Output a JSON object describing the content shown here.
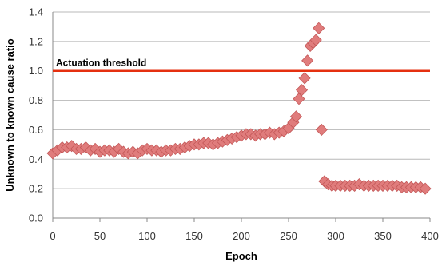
{
  "chart_data": {
    "type": "scatter",
    "title": "",
    "xlabel": "Epoch",
    "ylabel": "Unknown to known cause ratio",
    "xlim": [
      0,
      400
    ],
    "ylim": [
      0,
      1.4
    ],
    "xticks": [
      0,
      50,
      100,
      150,
      200,
      250,
      300,
      350,
      400
    ],
    "yticks": [
      0.0,
      0.2,
      0.4,
      0.6,
      0.8,
      1.0,
      1.2,
      1.4
    ],
    "ytick_labels": [
      "0.0",
      "0.2",
      "0.4",
      "0.6",
      "0.8",
      "1.0",
      "1.2",
      "1.4"
    ],
    "grid": "horizontal",
    "colors": {
      "marker_fill": "#e07c7c",
      "marker_stroke": "#c35858",
      "threshold": "#e53010"
    },
    "threshold": {
      "y": 1.0,
      "label": "Actuation threshold"
    },
    "series": [
      {
        "marker": "diamond",
        "x": [
          0,
          5,
          10,
          15,
          20,
          25,
          30,
          35,
          40,
          45,
          50,
          55,
          60,
          65,
          70,
          75,
          80,
          85,
          90,
          95,
          100,
          105,
          110,
          115,
          120,
          125,
          130,
          135,
          140,
          145,
          150,
          155,
          160,
          165,
          170,
          175,
          180,
          185,
          190,
          195,
          200,
          205,
          210,
          215,
          220,
          225,
          230,
          235,
          240,
          245,
          250,
          255,
          258,
          261,
          264,
          267,
          270,
          273,
          276,
          279,
          282,
          285,
          288,
          292,
          296,
          300,
          305,
          310,
          315,
          320,
          325,
          330,
          335,
          340,
          345,
          350,
          355,
          360,
          365,
          370,
          375,
          380,
          385,
          390,
          395
        ],
        "y": [
          0.44,
          0.46,
          0.48,
          0.48,
          0.49,
          0.47,
          0.47,
          0.48,
          0.46,
          0.47,
          0.45,
          0.46,
          0.46,
          0.45,
          0.47,
          0.45,
          0.44,
          0.45,
          0.44,
          0.46,
          0.47,
          0.46,
          0.46,
          0.45,
          0.46,
          0.46,
          0.47,
          0.47,
          0.48,
          0.49,
          0.5,
          0.5,
          0.51,
          0.51,
          0.5,
          0.51,
          0.52,
          0.53,
          0.54,
          0.55,
          0.56,
          0.57,
          0.57,
          0.56,
          0.57,
          0.57,
          0.58,
          0.57,
          0.58,
          0.59,
          0.61,
          0.65,
          0.69,
          0.81,
          0.87,
          0.95,
          1.07,
          1.17,
          1.19,
          1.21,
          1.29,
          0.6,
          0.25,
          0.23,
          0.22,
          0.22,
          0.22,
          0.22,
          0.22,
          0.22,
          0.23,
          0.22,
          0.22,
          0.22,
          0.22,
          0.22,
          0.22,
          0.22,
          0.22,
          0.21,
          0.21,
          0.21,
          0.21,
          0.21,
          0.2
        ]
      }
    ]
  }
}
